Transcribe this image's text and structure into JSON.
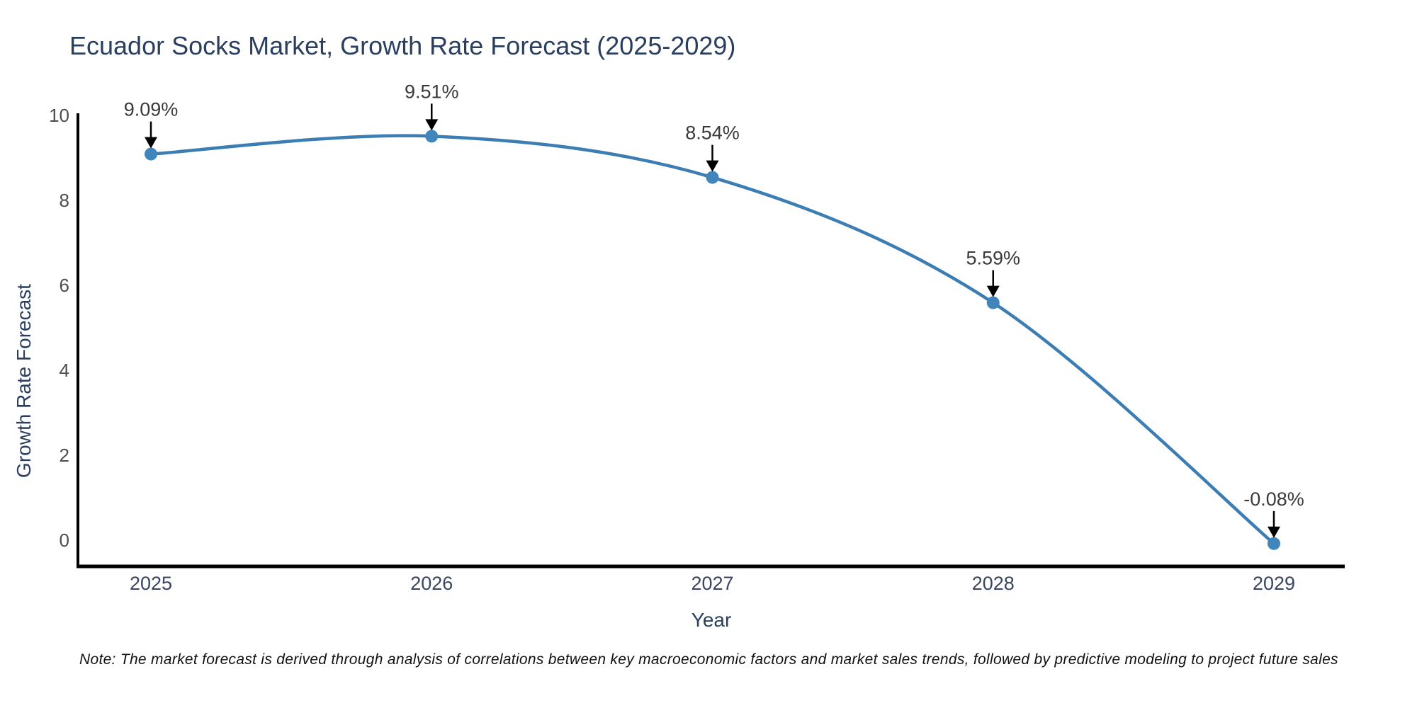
{
  "note": "Note: The market forecast is derived through analysis of correlations between key macroeconomic factors and market sales trends, followed by predictive modeling to project future sales",
  "chart_data": {
    "type": "line",
    "title": "Ecuador Socks Market, Growth Rate Forecast (2025-2029)",
    "xlabel": "Year",
    "ylabel": "Growth Rate Forecast",
    "x": [
      2025,
      2026,
      2027,
      2028,
      2029
    ],
    "series": [
      {
        "name": "Growth Rate Forecast",
        "values": [
          9.09,
          9.51,
          8.54,
          5.59,
          -0.08
        ],
        "point_labels": [
          "9.09%",
          "9.51%",
          "8.54%",
          "5.59%",
          "-0.08%"
        ],
        "line_color": "#3c7db3",
        "marker_color": "#4085bb"
      }
    ],
    "yticks": [
      0,
      2,
      4,
      6,
      8,
      10
    ],
    "ylim": [
      -0.65,
      10.7
    ],
    "curve": "spline",
    "grid": false,
    "legend": "none",
    "axis_color": "#000000",
    "tick_color_y": "#4d4d4d",
    "tick_color_x": "#3a4560",
    "annotation_text_color": "#3a3a3a",
    "annotation_arrow_color": "#000000",
    "title_color": "#2a3f5f"
  }
}
